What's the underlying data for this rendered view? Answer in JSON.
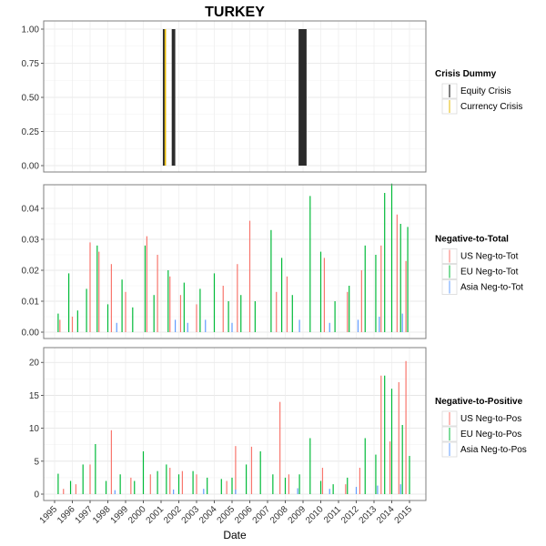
{
  "chart_data": {
    "type": "bar",
    "title": "TURKEY",
    "xlabel": "Date",
    "x_tick_labels": [
      "1995",
      "1996",
      "1997",
      "1998",
      "1999",
      "2000",
      "2001",
      "2002",
      "2003",
      "2004",
      "2005",
      "2006",
      "2007",
      "2008",
      "2009",
      "2010",
      "2011",
      "2012",
      "2013",
      "2014",
      "2015"
    ],
    "xlim": [
      1995,
      2015
    ],
    "grid": true,
    "legend_position": "right",
    "panels": [
      {
        "id": "crisis",
        "legend_title": "Crisis Dummy",
        "ylim": [
          0,
          1
        ],
        "y_ticks": [
          0,
          0.25,
          0.5,
          0.75,
          1.0
        ],
        "y_tick_labels": [
          "0.00",
          "0.25",
          "0.50",
          "0.75",
          "1.00"
        ],
        "series": [
          {
            "name": "Equity Crisis",
            "color": "#000000",
            "periods": [
              [
                2001.1,
                2001.2
              ],
              [
                2001.6,
                2001.8
              ],
              [
                2008.75,
                2009.2
              ]
            ],
            "value": 1
          },
          {
            "name": "Currency Crisis",
            "color": "#e6b800",
            "periods": [
              [
                2001.2,
                2001.28
              ]
            ],
            "value": 1
          }
        ]
      },
      {
        "id": "neg_tot",
        "legend_title": "Negative-to-Total",
        "ylim": [
          0,
          0.045
        ],
        "y_ticks": [
          0,
          0.01,
          0.02,
          0.03,
          0.04
        ],
        "y_tick_labels": [
          "0.00",
          "0.01",
          "0.02",
          "0.03",
          "0.04"
        ],
        "series": [
          {
            "name": "US Neg-to-Tot",
            "color": "#f8766d",
            "x": [
              1995.3,
              1996.0,
              1997.0,
              1997.5,
              1998.2,
              1999.0,
              2000.2,
              2000.8,
              2001.5,
              2002.1,
              2003.0,
              2004.5,
              2005.3,
              2006.0,
              2007.5,
              2008.1,
              2010.2,
              2011.5,
              2012.3,
              2013.4,
              2014.3,
              2014.8
            ],
            "y": [
              0.004,
              0.005,
              0.029,
              0.026,
              0.022,
              0.013,
              0.031,
              0.025,
              0.018,
              0.012,
              0.009,
              0.015,
              0.022,
              0.036,
              0.013,
              0.018,
              0.024,
              0.013,
              0.02,
              0.028,
              0.038,
              0.023
            ]
          },
          {
            "name": "EU Neg-to-Tot",
            "color": "#00ba38",
            "x": [
              1995.2,
              1995.8,
              1996.3,
              1996.8,
              1997.4,
              1998.0,
              1998.8,
              1999.4,
              2000.1,
              2000.6,
              2001.4,
              2002.3,
              2003.2,
              2004.0,
              2004.8,
              2005.5,
              2006.3,
              2007.2,
              2007.8,
              2008.4,
              2009.4,
              2010.0,
              2010.8,
              2011.6,
              2012.5,
              2013.1,
              2013.6,
              2014.0,
              2014.5,
              2014.9
            ],
            "y": [
              0.006,
              0.019,
              0.007,
              0.014,
              0.028,
              0.009,
              0.017,
              0.008,
              0.028,
              0.012,
              0.02,
              0.016,
              0.014,
              0.019,
              0.01,
              0.012,
              0.01,
              0.033,
              0.024,
              0.012,
              0.044,
              0.026,
              0.01,
              0.015,
              0.028,
              0.025,
              0.045,
              0.048,
              0.035,
              0.034
            ]
          },
          {
            "name": "Asia Neg-to-Tot",
            "color": "#619cff",
            "x": [
              1998.5,
              2001.8,
              2002.5,
              2003.5,
              2005.0,
              2008.8,
              2010.5,
              2012.1,
              2013.3,
              2014.6
            ],
            "y": [
              0.003,
              0.004,
              0.003,
              0.004,
              0.003,
              0.004,
              0.003,
              0.004,
              0.005,
              0.006
            ]
          }
        ]
      },
      {
        "id": "neg_pos",
        "legend_title": "Negative-to-Positive",
        "ylim": [
          0,
          21
        ],
        "y_ticks": [
          0,
          5,
          10,
          15,
          20
        ],
        "y_tick_labels": [
          "0",
          "5",
          "10",
          "15",
          "20"
        ],
        "series": [
          {
            "name": "US Neg-to-Pos",
            "color": "#f8766d",
            "x": [
              1995.5,
              1996.2,
              1997.0,
              1998.2,
              1999.3,
              2000.4,
              2001.5,
              2002.2,
              2003.0,
              2004.7,
              2005.2,
              2006.1,
              2007.7,
              2008.2,
              2010.1,
              2011.4,
              2012.2,
              2013.4,
              2013.9,
              2014.4,
              2014.8
            ],
            "y": [
              0.8,
              1.5,
              4.5,
              9.7,
              2.5,
              3.0,
              4.0,
              3.5,
              3.0,
              2.0,
              7.3,
              7.2,
              14.0,
              3.0,
              4.0,
              1.5,
              4.0,
              18.0,
              8.0,
              17.0,
              20.2
            ]
          },
          {
            "name": "EU Neg-to-Pos",
            "color": "#00ba38",
            "x": [
              1995.2,
              1995.9,
              1996.6,
              1997.3,
              1997.9,
              1998.7,
              1999.5,
              2000.0,
              2000.8,
              2001.3,
              2002.0,
              2002.8,
              2003.6,
              2004.4,
              2005.0,
              2005.8,
              2006.6,
              2007.3,
              2008.0,
              2008.8,
              2009.4,
              2010.0,
              2010.7,
              2011.5,
              2012.5,
              2013.1,
              2013.6,
              2014.0,
              2014.6,
              2015.0
            ],
            "y": [
              3.1,
              2.0,
              4.5,
              7.6,
              2.0,
              3.0,
              2.0,
              6.5,
              3.5,
              4.5,
              3.0,
              3.5,
              2.5,
              2.3,
              2.5,
              4.5,
              6.5,
              3.0,
              2.5,
              3.0,
              8.5,
              2.0,
              1.5,
              2.5,
              8.5,
              6.0,
              18.0,
              16.0,
              10.5,
              5.8
            ]
          },
          {
            "name": "Asia Neg-to-Pos",
            "color": "#619cff",
            "x": [
              1998.4,
              2001.7,
              2003.4,
              2005.2,
              2008.7,
              2010.5,
              2012.0,
              2013.2,
              2014.5
            ],
            "y": [
              0.6,
              0.7,
              0.8,
              0.7,
              0.9,
              0.8,
              1.1,
              1.3,
              1.5
            ]
          }
        ]
      }
    ]
  }
}
